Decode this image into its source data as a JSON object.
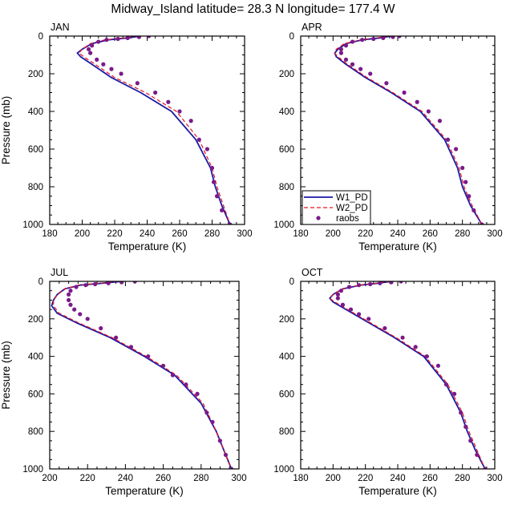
{
  "title": "Midway_Island  latitude= 28.3 N longitude= 177.4 W",
  "legend": [
    {
      "name": "W1_PD",
      "color": "#1a1aa6",
      "style": "solid"
    },
    {
      "name": "W2_PD",
      "color": "#e8141e",
      "style": "dashed"
    },
    {
      "name": "raobs",
      "color": "#7a1a8a",
      "style": "markers"
    }
  ],
  "chart_data": [
    {
      "type": "line",
      "panel": "JAN",
      "xlabel": "Temperature (K)",
      "ylabel": "Pressure (mb)",
      "xlim": [
        180,
        300
      ],
      "ylim": [
        1000,
        0
      ],
      "xticks": [
        180,
        200,
        220,
        240,
        260,
        280,
        300
      ],
      "yticks": [
        0,
        200,
        400,
        600,
        800,
        1000
      ],
      "series": [
        {
          "name": "W1_PD",
          "x": [
            236,
            228,
            216,
            206,
            200,
            197,
            199,
            206,
            218,
            236,
            255,
            270,
            279,
            282,
            286,
            291
          ],
          "y": [
            0,
            10,
            20,
            40,
            70,
            90,
            110,
            150,
            220,
            300,
            400,
            550,
            700,
            800,
            900,
            1000
          ]
        },
        {
          "name": "W2_PD",
          "x": [
            234,
            226,
            214,
            205,
            200,
            198,
            201,
            208,
            220,
            239,
            258,
            272,
            280,
            283,
            287,
            291
          ],
          "y": [
            0,
            10,
            20,
            40,
            70,
            90,
            110,
            150,
            220,
            300,
            400,
            550,
            700,
            800,
            900,
            1000
          ]
        },
        {
          "name": "raobs",
          "x": [
            241,
            235,
            228,
            222,
            215,
            210,
            206,
            204,
            205,
            209,
            213,
            218,
            224,
            234,
            245,
            253,
            260,
            267,
            272,
            277,
            280,
            281,
            283,
            286,
            291
          ],
          "y": [
            0,
            5,
            10,
            15,
            20,
            30,
            50,
            70,
            90,
            125,
            150,
            175,
            200,
            250,
            300,
            350,
            400,
            450,
            550,
            600,
            700,
            775,
            850,
            925,
            1000
          ]
        }
      ]
    },
    {
      "type": "line",
      "panel": "APR",
      "xlabel": "Temperature (K)",
      "ylabel": "Pressure (mb)",
      "xlim": [
        180,
        300
      ],
      "ylim": [
        1000,
        0
      ],
      "xticks": [
        180,
        200,
        220,
        240,
        260,
        280,
        300
      ],
      "yticks": [
        0,
        200,
        400,
        600,
        800,
        1000
      ],
      "series": [
        {
          "name": "W1_PD",
          "x": [
            236,
            229,
            218,
            208,
            203,
            201,
            202,
            208,
            220,
            236,
            254,
            269,
            277,
            280,
            285,
            292
          ],
          "y": [
            0,
            10,
            20,
            40,
            70,
            90,
            110,
            150,
            220,
            300,
            400,
            550,
            700,
            800,
            900,
            1000
          ]
        },
        {
          "name": "W2_PD",
          "x": [
            234,
            227,
            217,
            207,
            202,
            201,
            203,
            209,
            221,
            237,
            255,
            270,
            278,
            281,
            286,
            292
          ],
          "y": [
            0,
            10,
            20,
            40,
            70,
            90,
            110,
            150,
            220,
            300,
            400,
            550,
            700,
            800,
            900,
            1000
          ]
        },
        {
          "name": "raobs",
          "x": [
            241,
            237,
            231,
            225,
            218,
            212,
            208,
            205,
            205,
            208,
            212,
            217,
            223,
            233,
            244,
            252,
            259,
            266,
            271,
            276,
            280,
            282,
            284,
            287,
            292
          ],
          "y": [
            0,
            5,
            10,
            15,
            20,
            30,
            50,
            70,
            90,
            125,
            150,
            175,
            200,
            250,
            300,
            350,
            400,
            450,
            550,
            600,
            700,
            775,
            850,
            925,
            1000
          ]
        }
      ]
    },
    {
      "type": "line",
      "panel": "JUL",
      "xlabel": "Temperature (K)",
      "ylabel": "Pressure (mb)",
      "xlim": [
        200,
        300
      ],
      "ylim": [
        1000,
        0
      ],
      "xticks": [
        200,
        220,
        240,
        260,
        280,
        300
      ],
      "yticks": [
        0,
        200,
        400,
        600,
        800,
        1000
      ],
      "series": [
        {
          "name": "W1_PD",
          "x": [
            238,
            228,
            216,
            208,
            204,
            202,
            201,
            204,
            214,
            232,
            250,
            266,
            280,
            288,
            292,
            296
          ],
          "y": [
            0,
            10,
            20,
            40,
            70,
            100,
            130,
            170,
            220,
            300,
            400,
            500,
            650,
            800,
            900,
            1000
          ]
        },
        {
          "name": "W2_PD",
          "x": [
            236,
            227,
            215,
            208,
            204,
            202,
            202,
            205,
            215,
            233,
            251,
            267,
            281,
            288,
            292,
            296
          ],
          "y": [
            0,
            10,
            20,
            40,
            70,
            100,
            130,
            170,
            220,
            300,
            400,
            500,
            650,
            800,
            900,
            1000
          ]
        },
        {
          "name": "raobs",
          "x": [
            245,
            238,
            231,
            224,
            219,
            214,
            211,
            210,
            210,
            211,
            213,
            216,
            220,
            227,
            235,
            243,
            252,
            260,
            265,
            272,
            278,
            283,
            286,
            290,
            293,
            296
          ],
          "y": [
            0,
            5,
            10,
            15,
            20,
            30,
            50,
            70,
            100,
            125,
            150,
            175,
            200,
            250,
            300,
            350,
            400,
            450,
            500,
            550,
            600,
            700,
            750,
            850,
            925,
            1000
          ]
        }
      ]
    },
    {
      "type": "line",
      "panel": "OCT",
      "xlabel": "Temperature (K)",
      "ylabel": "Pressure (mb)",
      "xlim": [
        180,
        300
      ],
      "ylim": [
        1000,
        0
      ],
      "xticks": [
        180,
        200,
        220,
        240,
        260,
        280,
        300
      ],
      "yticks": [
        0,
        200,
        400,
        600,
        800,
        1000
      ],
      "series": [
        {
          "name": "W1_PD",
          "x": [
            236,
            228,
            217,
            206,
            200,
            198,
            200,
            208,
            222,
            238,
            256,
            270,
            279,
            283,
            288,
            294
          ],
          "y": [
            0,
            10,
            20,
            40,
            70,
            90,
            110,
            150,
            220,
            300,
            400,
            550,
            700,
            800,
            900,
            1000
          ]
        },
        {
          "name": "W2_PD",
          "x": [
            235,
            227,
            216,
            206,
            200,
            198,
            201,
            209,
            223,
            239,
            257,
            271,
            280,
            284,
            289,
            294
          ],
          "y": [
            0,
            10,
            20,
            40,
            70,
            90,
            110,
            150,
            220,
            300,
            400,
            550,
            700,
            800,
            900,
            1000
          ]
        },
        {
          "name": "raobs",
          "x": [
            242,
            236,
            229,
            223,
            216,
            210,
            205,
            203,
            203,
            206,
            211,
            216,
            222,
            232,
            243,
            251,
            258,
            265,
            270,
            275,
            279,
            282,
            285,
            289,
            294
          ],
          "y": [
            0,
            5,
            10,
            15,
            20,
            30,
            50,
            70,
            90,
            125,
            150,
            175,
            200,
            250,
            300,
            350,
            400,
            450,
            550,
            600,
            700,
            775,
            850,
            925,
            1000
          ]
        }
      ]
    }
  ]
}
